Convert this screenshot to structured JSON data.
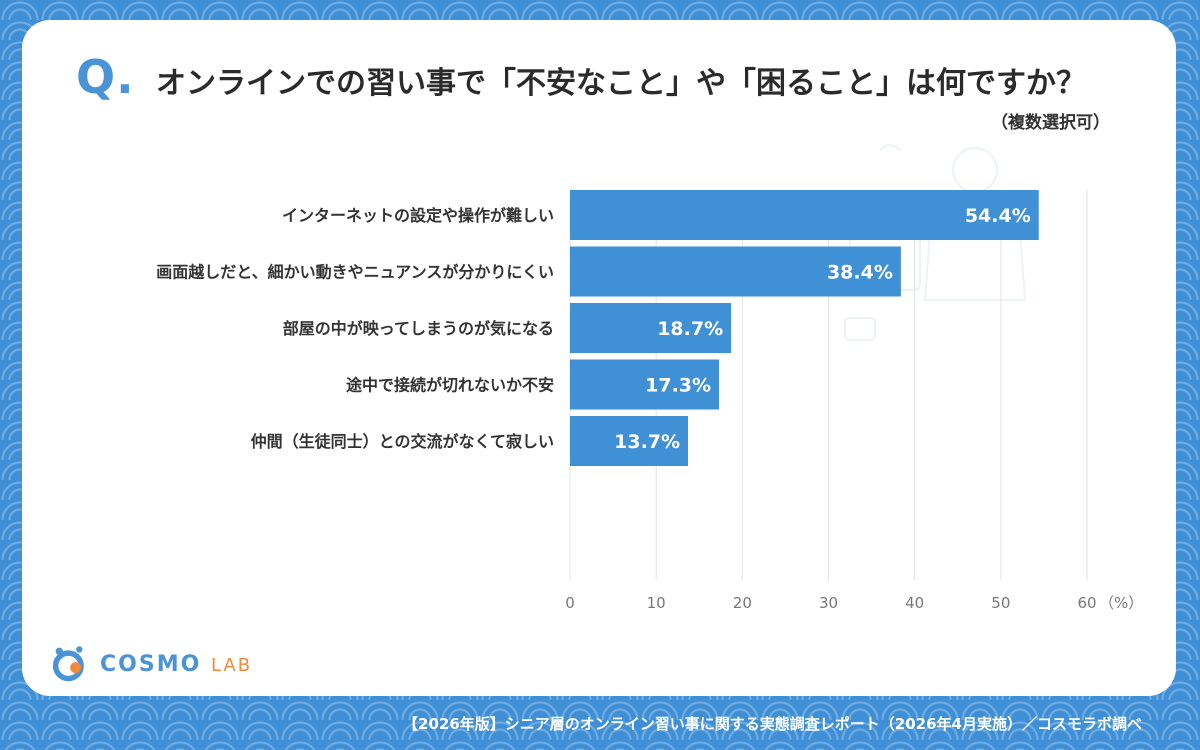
{
  "header": {
    "q_letter": "Q",
    "q_dot": ".",
    "title": "オンラインでの習い事で「不安なこと」や「困ること」は何ですか？",
    "subtitle": "（複数選択可）"
  },
  "chart_data": {
    "type": "bar",
    "orientation": "horizontal",
    "categories": [
      "インターネットの設定や操作が難しい",
      "画面越しだと、細かい動きやニュアンスが分かりにくい",
      "部屋の中が映ってしまうのが気になる",
      "途中で接続が切れないか不安",
      "仲間（生徒同士）との交流がなくて寂しい"
    ],
    "values": [
      54.4,
      38.4,
      18.7,
      17.3,
      13.7
    ],
    "value_labels": [
      "54.4%",
      "38.4%",
      "18.7%",
      "17.3%",
      "13.7%"
    ],
    "xlim": [
      0,
      60
    ],
    "ticks": [
      0,
      10,
      20,
      30,
      40,
      50,
      60
    ],
    "unit_label": "（%）",
    "grid": true,
    "bar_color": "#4090d5"
  },
  "logo": {
    "main": "COSMO",
    "sub": "LAB"
  },
  "footer": {
    "text": "【2026年版】シニア層のオンライン習い事に関する実態調査レポート（2026年4月実施）／コスモラボ調べ"
  }
}
